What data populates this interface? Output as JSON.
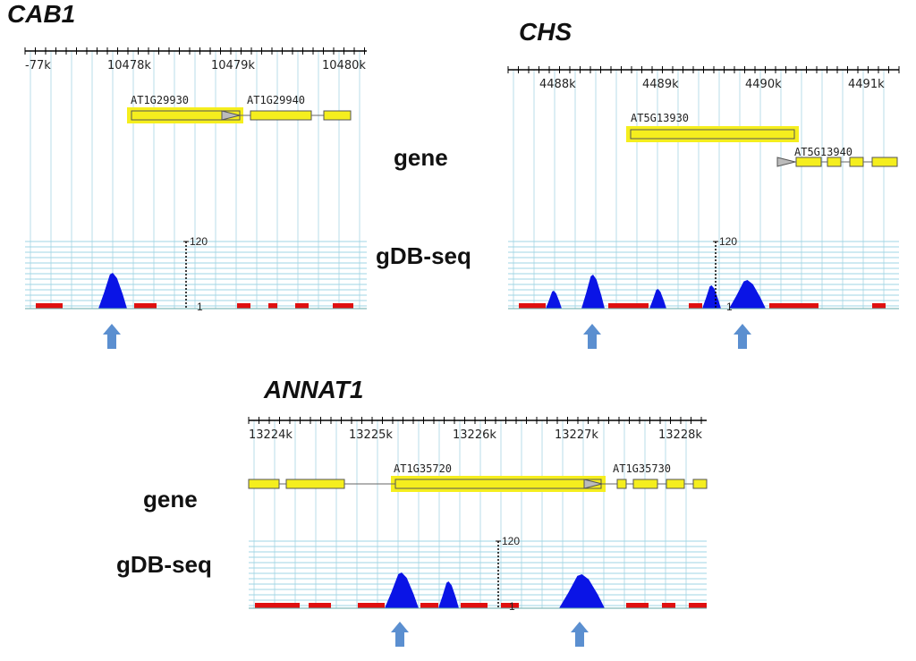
{
  "panels": [
    {
      "title": "CAB1",
      "ruler_labels": [
        "-77k",
        "10478k",
        "10479k",
        "10480k"
      ],
      "genes": [
        "AT1G29930",
        "AT1G29940"
      ],
      "scale_max": "120",
      "scale_min": "1"
    },
    {
      "title": "CHS",
      "ruler_labels": [
        "4488k",
        "4489k",
        "4490k",
        "4491k"
      ],
      "genes": [
        "AT5G13930",
        "AT5G13940"
      ],
      "scale_max": "120",
      "scale_min": "1"
    },
    {
      "title": "ANNAT1",
      "ruler_labels": [
        "13224k",
        "13225k",
        "13226k",
        "13227k",
        "13228k"
      ],
      "genes": [
        "AT1G35720",
        "AT1G35730"
      ],
      "scale_max": "120",
      "scale_min": "1"
    }
  ],
  "track_labels": [
    "gene",
    "gDB-seq",
    "gene",
    "gDB-seq"
  ]
}
